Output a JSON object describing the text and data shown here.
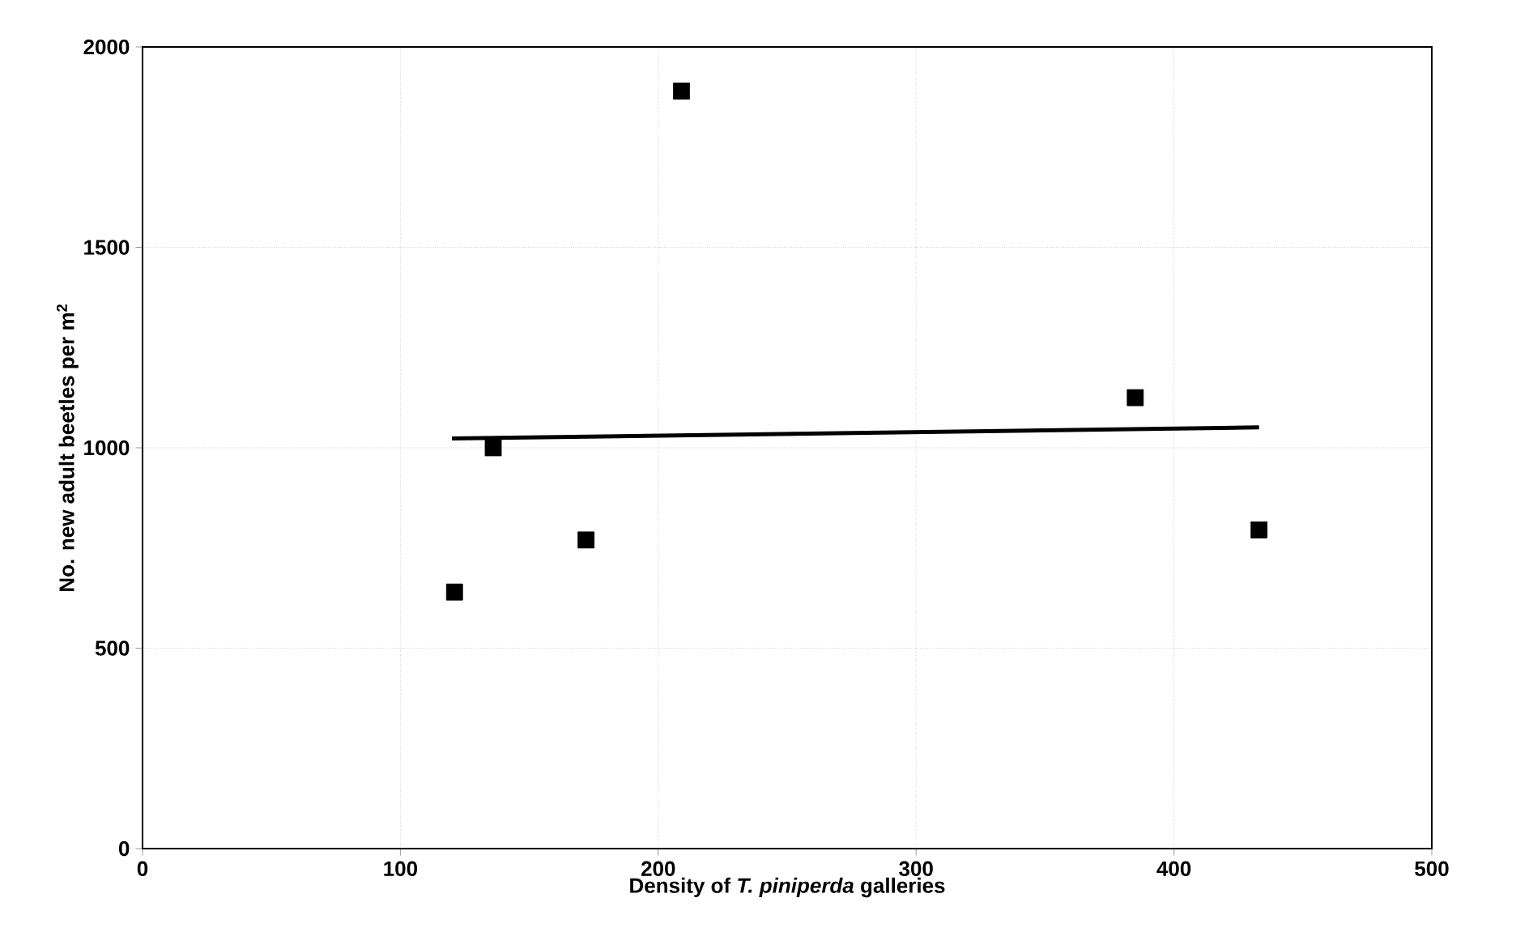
{
  "chart_data": {
    "type": "scatter",
    "xlabel": "Density of *T. piniperda* galleries",
    "ylabel": "No. new adult beetles per m$^{2}$",
    "xlim": [
      0,
      500
    ],
    "ylim": [
      0,
      2000
    ],
    "xticks": [
      0,
      100,
      200,
      300,
      400,
      500
    ],
    "yticks": [
      0,
      500,
      1000,
      1500,
      2000
    ],
    "grid": true,
    "series": [
      {
        "color": "#000000",
        "marker": "square",
        "x": [
          121,
          136,
          172,
          209,
          385,
          433
        ],
        "values": [
          640,
          1000,
          770,
          1890,
          1125,
          795
        ]
      },
      {
        "type": "line",
        "color": "#000000",
        "marker": "none",
        "line_style": "solid",
        "x": [
          120,
          433
        ],
        "values": [
          1023,
          1051
        ]
      }
    ]
  }
}
